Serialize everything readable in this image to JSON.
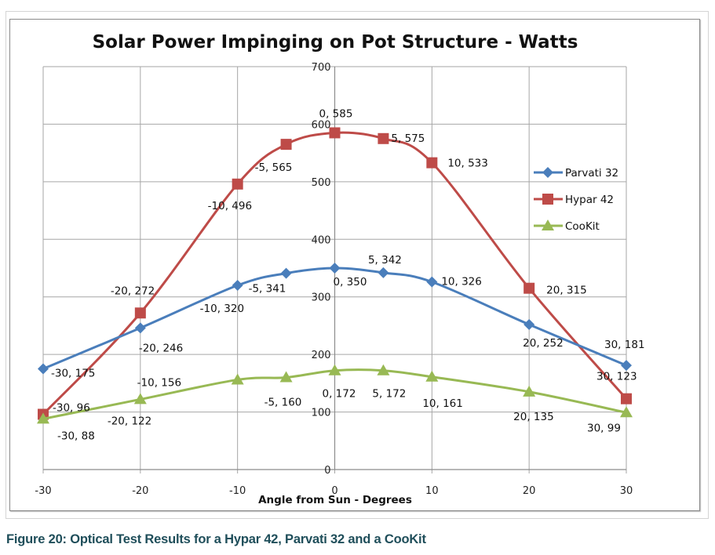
{
  "chart_data": {
    "type": "line",
    "title": "Solar Power Impinging on Pot Structure - Watts",
    "xlabel": "Angle from Sun - Degrees",
    "ylabel": "",
    "xlim": [
      -30,
      30
    ],
    "ylim": [
      0,
      700
    ],
    "xticks": [
      -30,
      -20,
      -10,
      0,
      10,
      20,
      30
    ],
    "yticks": [
      0,
      100,
      200,
      300,
      400,
      500,
      600,
      700
    ],
    "grid": true,
    "legend_position": "right",
    "smooth": true,
    "series": [
      {
        "name": "Parvati 32",
        "color": "#4a7ebb",
        "marker": "diamond",
        "x": [
          -30,
          -20,
          -10,
          -5,
          0,
          5,
          10,
          20,
          30
        ],
        "y": [
          175,
          246,
          320,
          341,
          350,
          342,
          326,
          252,
          181
        ],
        "labels": [
          "-30, 175",
          "-20, 246",
          "-10, 320",
          "-5, 341",
          "0, 350",
          "5, 342",
          "10, 326",
          "20, 252",
          "30, 181"
        ]
      },
      {
        "name": "Hypar 42",
        "color": "#be4b48",
        "marker": "square",
        "x": [
          -30,
          -20,
          -10,
          -5,
          0,
          5,
          10,
          20,
          30
        ],
        "y": [
          96,
          272,
          496,
          565,
          585,
          575,
          533,
          315,
          123
        ],
        "labels": [
          "-30, 96",
          "-20, 272",
          "-10, 496",
          "-5, 565",
          "0, 585",
          "5, 575",
          "10, 533",
          "20, 315",
          "30, 123"
        ]
      },
      {
        "name": "CooKit",
        "color": "#98b954",
        "marker": "triangle",
        "x": [
          -30,
          -20,
          -10,
          -5,
          0,
          5,
          10,
          20,
          30
        ],
        "y": [
          88,
          122,
          156,
          160,
          172,
          172,
          161,
          135,
          99
        ],
        "labels": [
          "-30, 88",
          "-20, 122",
          "-10, 156",
          "-5, 160",
          "0, 172",
          "5, 172",
          "10, 161",
          "20, 135",
          "30, 99"
        ]
      }
    ]
  },
  "caption": "Figure 20: Optical Test Results for a Hypar 42, Parvati 32 and a CooKit"
}
